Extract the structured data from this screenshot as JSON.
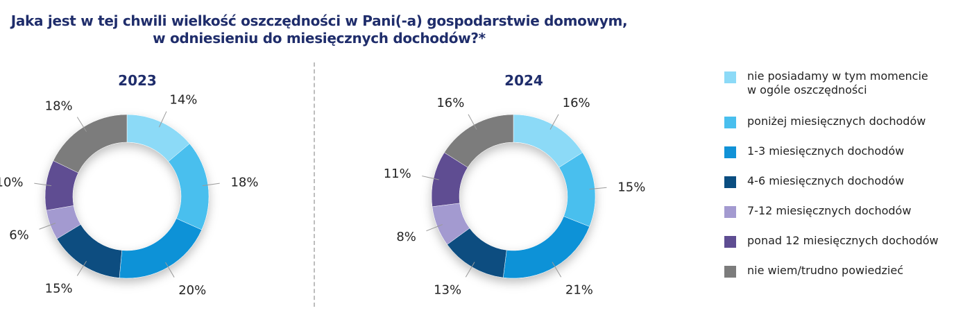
{
  "title_line1": "Jaka jest w tej chwili wielkość oszczędności w Pani(-a) gospodarstwie domowym,",
  "title_line2": "w odniesieniu do miesięcznych dochodów?*",
  "colors": [
    "#8cdaf7",
    "#49bfee",
    "#1192d7",
    "#0a4d80",
    "#a39ad0",
    "#5e4d92",
    "#7c7c7c"
  ],
  "chart_data": [
    {
      "type": "pie",
      "title": "2023",
      "categories": [
        "nie posiadamy w tym momencie w ogóle oszczędności",
        "poniżej miesięcznych dochodów",
        "1-3 miesięcznych dochodów",
        "4-6 miesięcznych dochodów",
        "7-12 miesięcznych dochodów",
        "ponad 12 miesięcznych dochodów",
        "nie wiem/trudno powiedzieć"
      ],
      "values": [
        14,
        18,
        20,
        15,
        6,
        10,
        18
      ],
      "labels": [
        "14%",
        "18%",
        "20%",
        "15%",
        "6%",
        "10%",
        "18%"
      ]
    },
    {
      "type": "pie",
      "title": "2024",
      "categories": [
        "nie posiadamy w tym momencie w ogóle oszczędności",
        "poniżej miesięcznych dochodów",
        "1-3 miesięcznych dochodów",
        "4-6 miesięcznych dochodów",
        "7-12 miesięcznych dochodów",
        "ponad 12 miesięcznych dochodów",
        "nie wiem/trudno powiedzieć"
      ],
      "values": [
        16,
        15,
        21,
        13,
        8,
        11,
        16
      ],
      "labels": [
        "16%",
        "15%",
        "21%",
        "13%",
        "8%",
        "11%",
        "16%"
      ]
    }
  ],
  "legend": [
    {
      "label": "nie posiadamy w tym momencie\nw ogóle oszczędności"
    },
    {
      "label": "poniżej miesięcznych dochodów"
    },
    {
      "label": "1-3 miesięcznych dochodów"
    },
    {
      "label": "4-6 miesięcznych dochodów"
    },
    {
      "label": "7-12 miesięcznych dochodów"
    },
    {
      "label": "ponad 12 miesięcznych dochodów"
    },
    {
      "label": "nie wiem/trudno powiedzieć"
    }
  ]
}
